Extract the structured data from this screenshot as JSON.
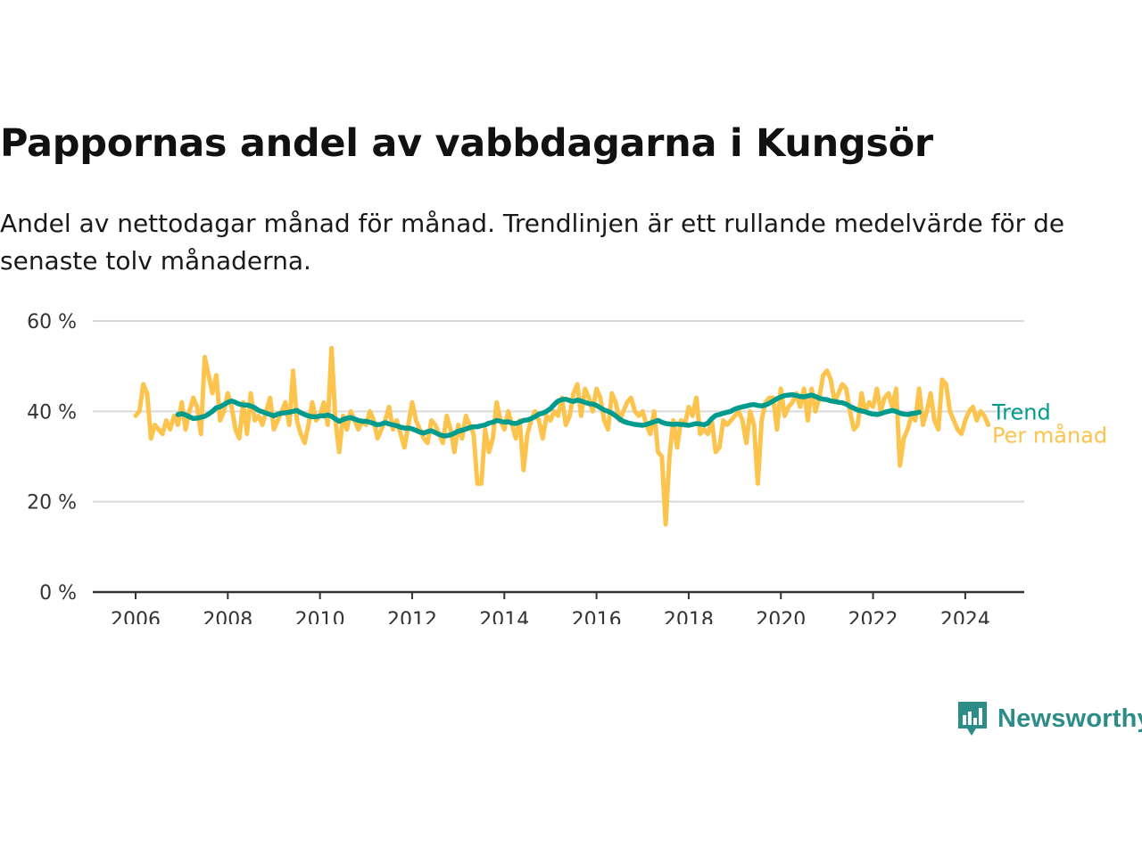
{
  "title": "Pappornas andel av vabbdagarna i Kungsör",
  "subtitle": "Andel av nettodagar månad för månad. Trendlinjen är ett rullande medelvärde för de senaste tolv månaderna.",
  "logo": {
    "text": "Newsworthy",
    "icon": "newsworthy-logo-icon",
    "color": "#2c8c88"
  },
  "colors": {
    "per_manad": "#fcc34d",
    "trend": "#009b8d",
    "grid": "#d9d9d9",
    "axis": "#333333"
  },
  "chart_data": {
    "type": "line",
    "x_start": "2006-01",
    "x_frequency": "monthly",
    "ylim": [
      0,
      60
    ],
    "y_ticks": [
      0,
      20,
      40,
      60
    ],
    "y_tick_labels": [
      "0 %",
      "20 %",
      "40 %",
      "60 %"
    ],
    "x_ticks": [
      "2006-01",
      "2008-01",
      "2010-01",
      "2012-01",
      "2014-01",
      "2016-01",
      "2018-01",
      "2020-01",
      "2022-01",
      "2024-01"
    ],
    "x_tick_labels": [
      "2006",
      "2008",
      "2010",
      "2012",
      "2014",
      "2016",
      "2018",
      "2020",
      "2022",
      "2024"
    ],
    "grid": "horizontal",
    "legend": "inline at line ends",
    "series": [
      {
        "name": "Per månad",
        "color": "#fcc34d",
        "values": [
          39,
          40,
          46,
          44,
          34,
          37,
          36,
          35,
          38,
          36,
          39,
          37,
          42,
          36,
          40,
          43,
          41,
          35,
          52,
          48,
          44,
          48,
          38,
          40,
          44,
          41,
          36,
          34,
          42,
          35,
          44,
          38,
          39,
          37,
          40,
          43,
          36,
          38,
          40,
          42,
          37,
          49,
          38,
          35,
          33,
          37,
          42,
          38,
          39,
          42,
          37,
          54,
          38,
          31,
          39,
          36,
          40,
          38,
          36,
          38,
          37,
          40,
          38,
          34,
          36,
          38,
          41,
          36,
          38,
          35,
          32,
          37,
          42,
          38,
          36,
          34,
          33,
          38,
          37,
          35,
          33,
          39,
          36,
          31,
          37,
          34,
          39,
          37,
          35,
          24,
          24,
          36,
          31,
          34,
          42,
          38,
          36,
          40,
          37,
          34,
          38,
          27,
          35,
          38,
          40,
          38,
          34,
          39,
          38,
          40,
          39,
          43,
          37,
          39,
          44,
          46,
          39,
          45,
          43,
          40,
          45,
          43,
          38,
          36,
          44,
          42,
          38,
          40,
          42,
          43,
          40,
          39,
          40,
          37,
          35,
          40,
          31,
          30,
          15,
          30,
          38,
          32,
          38,
          37,
          41,
          39,
          43,
          35,
          36,
          35,
          38,
          31,
          32,
          38,
          37,
          38,
          39,
          40,
          38,
          33,
          40,
          37,
          24,
          38,
          42,
          43,
          43,
          36,
          45,
          39,
          41,
          42,
          44,
          41,
          45,
          38,
          45,
          40,
          43,
          48,
          49,
          47,
          42,
          44,
          46,
          45,
          40,
          36,
          37,
          44,
          40,
          42,
          41,
          45,
          40,
          43,
          44,
          41,
          45,
          28,
          34,
          36,
          39,
          38,
          45,
          37,
          40,
          44,
          38,
          36,
          47,
          46,
          40,
          38,
          36,
          35,
          38,
          40,
          41,
          38,
          40,
          39,
          37
        ]
      },
      {
        "name": "Trend",
        "color": "#009b8d",
        "start": "2006-12",
        "values": [
          39.3,
          39.5,
          39.2,
          38.8,
          38.4,
          38.5,
          38.7,
          38.9,
          39.4,
          40.0,
          40.8,
          41.0,
          41.5,
          42.0,
          42.3,
          42.0,
          41.6,
          41.4,
          41.4,
          41.2,
          40.8,
          40.2,
          39.9,
          39.6,
          39.3,
          39.0,
          39.4,
          39.6,
          39.7,
          39.8,
          40.0,
          40.2,
          39.7,
          39.3,
          39.0,
          38.8,
          38.8,
          39.0,
          39.0,
          39.2,
          38.9,
          38.3,
          37.8,
          38.2,
          38.5,
          38.6,
          38.3,
          38.0,
          37.8,
          37.8,
          37.6,
          37.3,
          37.0,
          37.2,
          37.5,
          37.2,
          37.0,
          36.8,
          36.5,
          36.3,
          36.3,
          36.1,
          35.8,
          35.4,
          35.2,
          35.5,
          35.7,
          35.3,
          34.9,
          34.6,
          34.6,
          34.8,
          35.2,
          35.6,
          35.8,
          36.1,
          36.4,
          36.6,
          36.6,
          36.8,
          37.0,
          37.4,
          37.6,
          38.0,
          37.8,
          37.6,
          37.7,
          37.4,
          37.3,
          37.6,
          38.0,
          38.1,
          38.4,
          38.8,
          39.4,
          39.6,
          40.0,
          40.6,
          41.5,
          42.3,
          42.6,
          42.7,
          42.4,
          42.2,
          42.5,
          42.3,
          42.0,
          41.7,
          41.6,
          41.3,
          40.8,
          40.3,
          40.0,
          39.6,
          39.0,
          38.3,
          37.8,
          37.5,
          37.3,
          37.1,
          37.0,
          36.9,
          37.1,
          37.4,
          37.7,
          38.0,
          37.6,
          37.3,
          37.2,
          37.1,
          37.2,
          37.1,
          37.0,
          36.9,
          37.1,
          37.3,
          37.2,
          37.0,
          37.4,
          38.4,
          39.1,
          39.3,
          39.6,
          39.8,
          40.0,
          40.5,
          40.8,
          41.0,
          41.2,
          41.4,
          41.5,
          41.3,
          41.2,
          41.4,
          41.8,
          42.3,
          42.8,
          43.2,
          43.5,
          43.6,
          43.7,
          43.5,
          43.3,
          43.2,
          43.4,
          43.6,
          43.3,
          42.9,
          42.7,
          42.6,
          42.3,
          42.2,
          42.0,
          41.9,
          41.6,
          41.1,
          40.7,
          40.3,
          40.1,
          39.9,
          39.6,
          39.4,
          39.3,
          39.5,
          39.8,
          40.0,
          40.2,
          40.0,
          39.6,
          39.4,
          39.3,
          39.5,
          39.6,
          39.8
        ]
      }
    ]
  }
}
